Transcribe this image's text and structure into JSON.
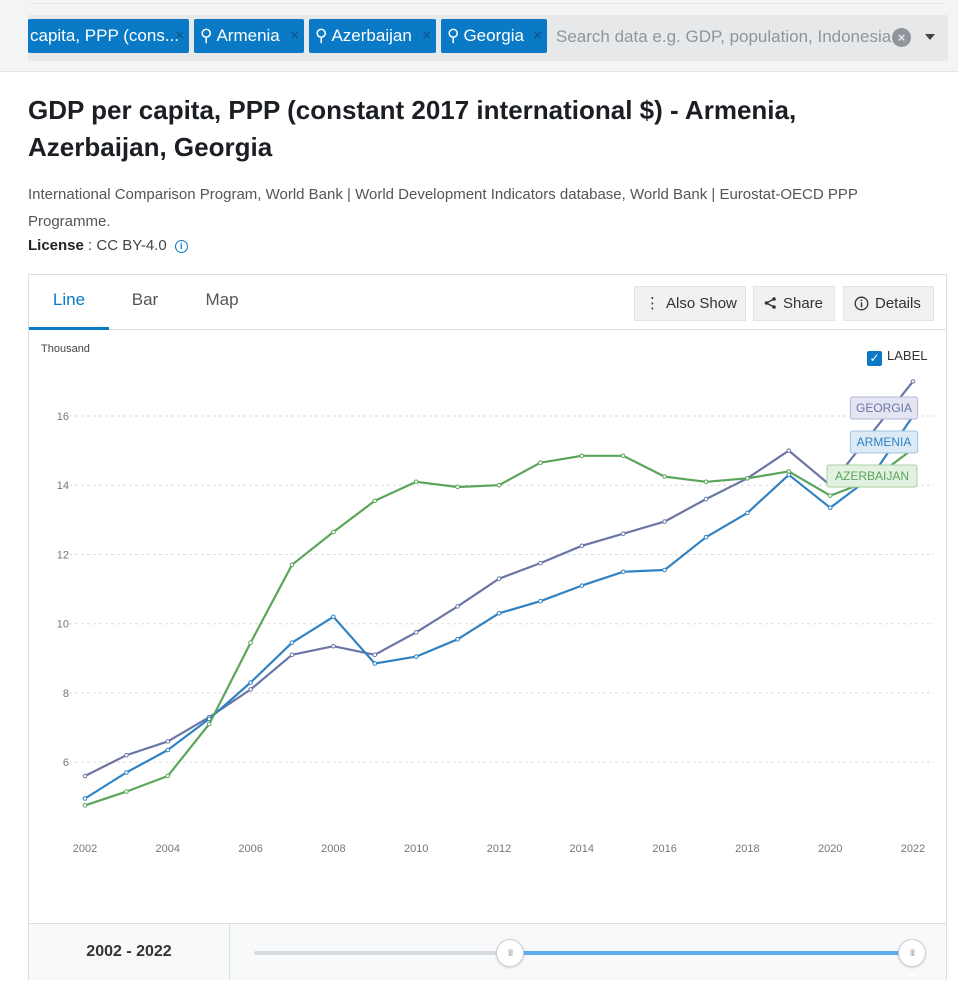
{
  "search": {
    "chips": [
      {
        "label": "capita, PPP (cons...",
        "pin": false
      },
      {
        "label": "Armenia",
        "pin": true
      },
      {
        "label": "Azerbaijan",
        "pin": true
      },
      {
        "label": "Georgia",
        "pin": true
      }
    ],
    "placeholder": "Search data e.g. GDP, population, Indonesia",
    "chip_remove_glyph": "×",
    "clear_glyph": "×",
    "pin_glyph": "⚲"
  },
  "header": {
    "title": "GDP per capita, PPP (constant 2017 international $) - Armenia, Azerbaijan, Georgia",
    "source": "International Comparison Program, World Bank | World Development Indicators database, World Bank | Eurostat-OECD PPP Programme.",
    "license_key": "License",
    "license_value": " : CC BY-4.0"
  },
  "tabs": [
    {
      "label": "Line",
      "active": true
    },
    {
      "label": "Bar",
      "active": false
    },
    {
      "label": "Map",
      "active": false
    }
  ],
  "actions": {
    "also_show": "Also Show",
    "share": "Share",
    "details": "Details"
  },
  "chart": {
    "unit_label": "Thousand",
    "label_toggle": "LABEL",
    "label_checked": true
  },
  "chart_data": {
    "type": "line",
    "ylabel": "Thousand",
    "xlabel": "",
    "ylim": [
      4.3,
      17.3
    ],
    "yticks": [
      6,
      8,
      10,
      12,
      14,
      16
    ],
    "xticks": [
      2002,
      2004,
      2006,
      2008,
      2010,
      2012,
      2014,
      2016,
      2018,
      2020,
      2022
    ],
    "grid": true,
    "x": [
      2002,
      2003,
      2004,
      2005,
      2006,
      2007,
      2008,
      2009,
      2010,
      2011,
      2012,
      2013,
      2014,
      2015,
      2016,
      2017,
      2018,
      2019,
      2020,
      2021,
      2022
    ],
    "series": [
      {
        "name": "GEORGIA",
        "color": "#6b76a6",
        "label_bg": "#e3e5f2",
        "label_border": "#b3b8d8",
        "values": [
          5.6,
          6.2,
          6.6,
          7.3,
          8.1,
          9.1,
          9.35,
          9.1,
          9.75,
          10.5,
          11.3,
          11.75,
          12.25,
          12.6,
          12.95,
          13.6,
          14.2,
          15.0,
          14.0,
          15.5,
          17.0
        ]
      },
      {
        "name": "ARMENIA",
        "color": "#3082c2",
        "label_bg": "#dceaf6",
        "label_border": "#9ec4e4",
        "values": [
          4.95,
          5.7,
          6.35,
          7.25,
          8.3,
          9.45,
          10.2,
          8.85,
          9.05,
          9.55,
          10.3,
          10.65,
          11.1,
          11.5,
          11.55,
          12.5,
          13.2,
          14.3,
          13.35,
          14.25,
          16.0
        ]
      },
      {
        "name": "AZERBAIJAN",
        "color": "#5aa55a",
        "label_bg": "#e3f1e0",
        "label_border": "#a9d2a2",
        "values": [
          4.75,
          5.15,
          5.6,
          7.1,
          9.45,
          11.7,
          12.65,
          13.55,
          14.1,
          13.95,
          14.0,
          14.65,
          14.85,
          14.85,
          14.25,
          14.1,
          14.2,
          14.4,
          13.7,
          14.15,
          15.05
        ]
      }
    ]
  },
  "range": {
    "label": "2002 - 2022",
    "start_fraction": 0.389,
    "end_fraction": 1.0,
    "thumb_glyph": "III"
  }
}
